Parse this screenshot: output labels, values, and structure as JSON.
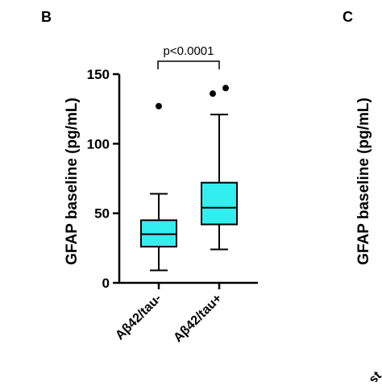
{
  "panels": {
    "left_label": "B",
    "right_label": "C"
  },
  "chart_data": {
    "type": "box",
    "ylabel": "GFAP baseline (pg/mL)",
    "ylim": [
      0,
      150
    ],
    "yticks": [
      0,
      50,
      100,
      150
    ],
    "categories": [
      "Aβ42/tau-",
      "Aβ42/tau+"
    ],
    "boxes": [
      {
        "category": "Aβ42/tau-",
        "whisker_low": 9,
        "q1": 26,
        "median": 35,
        "q3": 45,
        "whisker_high": 64,
        "outliers": [
          127
        ]
      },
      {
        "category": "Aβ42/tau+",
        "whisker_low": 24,
        "q1": 42,
        "median": 54,
        "q3": 72,
        "whisker_high": 121,
        "outliers": [
          136,
          140
        ]
      }
    ],
    "annotation": {
      "text": "p<0.0001",
      "between": [
        0,
        1
      ]
    },
    "box_color": "#33eeee",
    "line_color": "#000000"
  },
  "right_panel": {
    "ylabel": "GFAP baseline (pg/mL)",
    "tick_fragment": "st"
  }
}
